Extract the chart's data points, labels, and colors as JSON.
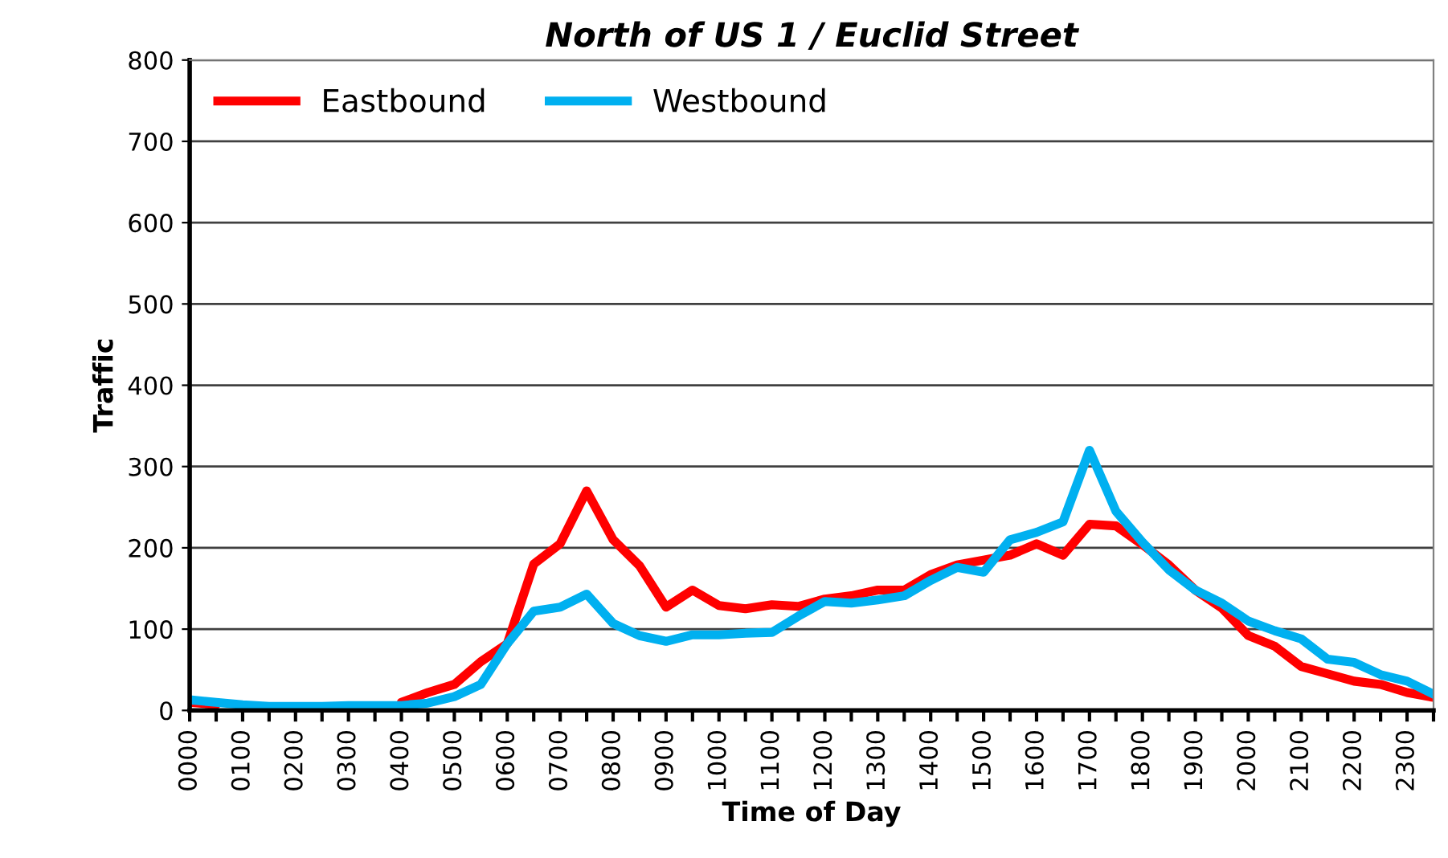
{
  "chart_data": {
    "type": "line",
    "title": "North of US 1 / Euclid Street",
    "xlabel": "Time of Day",
    "ylabel": "Traffic",
    "categories": [
      "0000",
      null,
      "0100",
      null,
      "0200",
      null,
      "0300",
      null,
      "0400",
      null,
      "0500",
      null,
      "0600",
      null,
      "0700",
      null,
      "0800",
      null,
      "0900",
      null,
      "1000",
      null,
      "1100",
      null,
      "1200",
      null,
      "1300",
      null,
      "1400",
      null,
      "1500",
      null,
      "1600",
      null,
      "1700",
      null,
      "1800",
      null,
      "1900",
      null,
      "2000",
      null,
      "2100",
      null,
      "2200",
      null,
      "2300",
      null
    ],
    "series": [
      {
        "name": "Eastbound",
        "color": "#ff0000",
        "values": [
          10,
          7,
          null,
          null,
          null,
          null,
          null,
          null,
          10,
          22,
          32,
          60,
          82,
          180,
          205,
          270,
          210,
          178,
          127,
          148,
          129,
          125,
          130,
          128,
          137,
          141,
          148,
          148,
          167,
          179,
          185,
          191,
          205,
          191,
          229,
          227,
          204,
          179,
          148,
          126,
          92,
          79,
          54,
          45,
          36,
          32,
          22,
          16
        ]
      },
      {
        "name": "Westbound",
        "color": "#00b0f0",
        "values": [
          13,
          10,
          7,
          5,
          5,
          5,
          6,
          6,
          6,
          9,
          17,
          32,
          82,
          122,
          127,
          143,
          107,
          92,
          85,
          93,
          93,
          95,
          96,
          116,
          134,
          132,
          136,
          141,
          160,
          176,
          170,
          210,
          219,
          232,
          320,
          245,
          207,
          173,
          148,
          132,
          110,
          98,
          88,
          63,
          59,
          44,
          36,
          20
        ]
      }
    ],
    "ylim": [
      0,
      800
    ],
    "yticks": [
      0,
      100,
      200,
      300,
      400,
      500,
      600,
      700,
      800
    ],
    "grid": "y",
    "legend": "top left",
    "marker": "none",
    "line_style": "solid"
  }
}
